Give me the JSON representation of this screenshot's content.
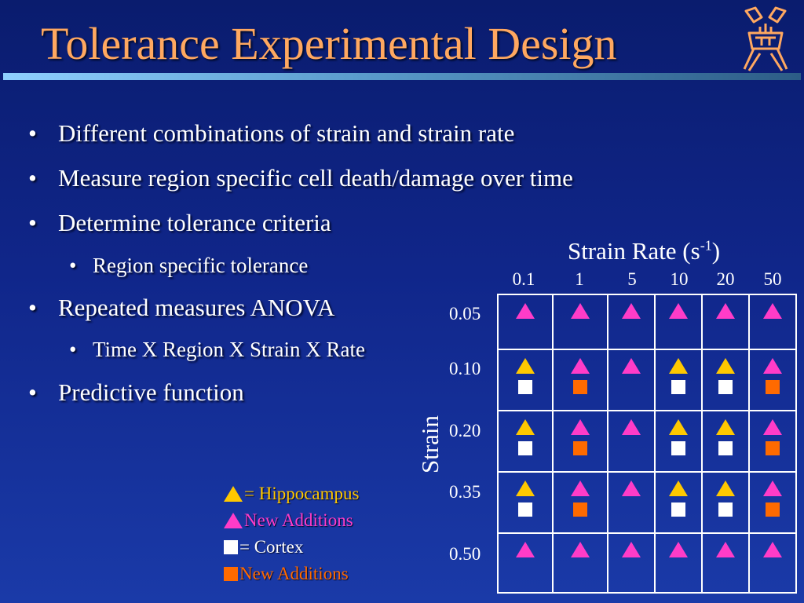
{
  "slide": {
    "title": "Tolerance Experimental Design",
    "logo_icon": "crest-logo-icon"
  },
  "bullets": [
    {
      "level": 1,
      "text": "Different combinations of strain and strain rate"
    },
    {
      "level": 1,
      "text": "Measure region specific cell death/damage over time"
    },
    {
      "level": 1,
      "text": "Determine tolerance criteria"
    },
    {
      "level": 2,
      "text": "Region specific tolerance"
    },
    {
      "level": 1,
      "text": "Repeated measures ANOVA"
    },
    {
      "level": 2,
      "text": "Time X Region X Strain X Rate"
    },
    {
      "level": 1,
      "text": "Predictive function"
    }
  ],
  "design_table": {
    "column_title": "Strain Rate (s",
    "column_title_exponent": "-1",
    "column_title_close": ")",
    "row_title": "Strain",
    "strain_rates": [
      "0.1",
      "1",
      "5",
      "10",
      "20",
      "50"
    ],
    "strains": [
      "0.05",
      "0.10",
      "0.20",
      "0.35",
      "0.50"
    ],
    "cells": [
      [
        [
          "pink-triangle"
        ],
        [
          "pink-triangle"
        ],
        [
          "pink-triangle"
        ],
        [
          "pink-triangle"
        ],
        [
          "pink-triangle"
        ],
        [
          "pink-triangle"
        ]
      ],
      [
        [
          "yellow-triangle",
          "white-square"
        ],
        [
          "pink-triangle",
          "orange-square"
        ],
        [
          "pink-triangle"
        ],
        [
          "yellow-triangle",
          "white-square"
        ],
        [
          "yellow-triangle",
          "white-square"
        ],
        [
          "pink-triangle",
          "orange-square"
        ]
      ],
      [
        [
          "yellow-triangle",
          "white-square"
        ],
        [
          "pink-triangle",
          "orange-square"
        ],
        [
          "pink-triangle"
        ],
        [
          "yellow-triangle",
          "white-square"
        ],
        [
          "yellow-triangle",
          "white-square"
        ],
        [
          "pink-triangle",
          "orange-square"
        ]
      ],
      [
        [
          "yellow-triangle",
          "white-square"
        ],
        [
          "pink-triangle",
          "orange-square"
        ],
        [
          "pink-triangle"
        ],
        [
          "yellow-triangle",
          "white-square"
        ],
        [
          "yellow-triangle",
          "white-square"
        ],
        [
          "pink-triangle",
          "orange-square"
        ]
      ],
      [
        [
          "pink-triangle"
        ],
        [
          "pink-triangle"
        ],
        [
          "pink-triangle"
        ],
        [
          "pink-triangle"
        ],
        [
          "pink-triangle"
        ],
        [
          "pink-triangle"
        ]
      ]
    ]
  },
  "legend": [
    {
      "marker": "yellow-triangle",
      "text": "= Hippocampus",
      "color": "#ffc800"
    },
    {
      "marker": "pink-triangle",
      "text": " New Additions",
      "color": "#ff3cc8"
    },
    {
      "marker": "white-square",
      "text": "= Cortex",
      "color": "#ffffff"
    },
    {
      "marker": "orange-square",
      "text": " New Additions",
      "color": "#ff6a00"
    }
  ],
  "colors": {
    "title": "#ffa860",
    "pink": "#ff3cc8",
    "yellow": "#ffc800",
    "orange": "#ff6a00",
    "white": "#ffffff"
  }
}
